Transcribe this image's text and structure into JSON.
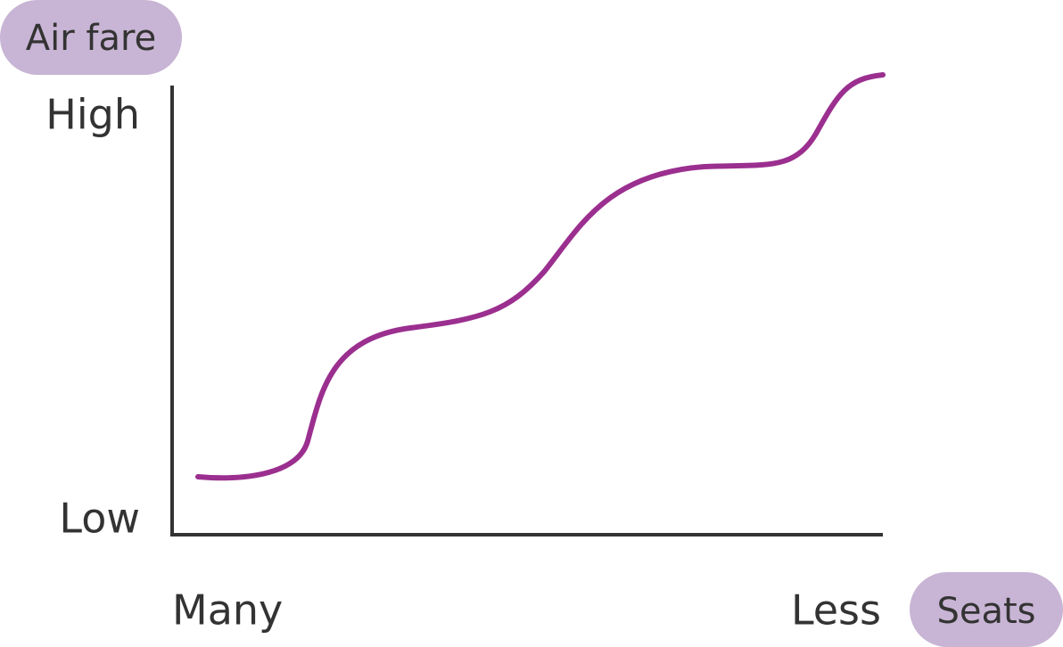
{
  "y_axis": {
    "label": "Air fare",
    "high": "High",
    "low": "Low"
  },
  "x_axis": {
    "label": "Seats",
    "start": "Many",
    "end": "Less"
  }
}
